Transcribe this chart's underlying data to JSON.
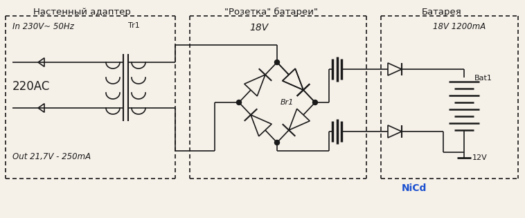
{
  "bg_color": "#f5f0e8",
  "line_color": "#1a1a1a",
  "title_adapter": "Настенный адаптер",
  "title_socket": "\"Розетка\" батареи\"",
  "title_battery": "Батарея",
  "text_in": "In 230V~ 50Hz",
  "text_220ac": "220AC",
  "text_out": "Out 21,7V - 250mA",
  "text_tr1": "Tr1",
  "text_18v_center": "18V",
  "text_18v_bat": "18V 1200mA",
  "text_br1": "Br1",
  "text_bat1": "Bat1",
  "text_12v": "12V",
  "text_nicd": "NiCd",
  "nicd_color": "#1a50d0",
  "fig_width": 7.58,
  "fig_height": 3.15
}
